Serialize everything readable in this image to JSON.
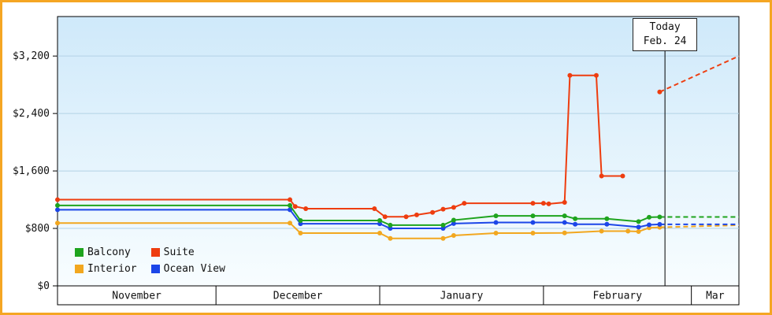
{
  "frame": {
    "border_color": "#f5a623"
  },
  "chart_data": {
    "type": "line",
    "points_unit": "days_from_nov_1",
    "y_axis": {
      "plot_max": 3750,
      "ticks": [
        {
          "value": 0,
          "label": "$0"
        },
        {
          "value": 800,
          "label": "$800"
        },
        {
          "value": 1600,
          "label": "$1,600"
        },
        {
          "value": 2400,
          "label": "$2,400"
        },
        {
          "value": 3200,
          "label": "$3,200"
        }
      ]
    },
    "x_axis": {
      "total_days": 129,
      "months": [
        {
          "label": "November",
          "days": 30
        },
        {
          "label": "December",
          "days": 31
        },
        {
          "label": "January",
          "days": 31
        },
        {
          "label": "February",
          "days": 28
        },
        {
          "label": "Mar",
          "days": 9
        }
      ]
    },
    "today": {
      "day": 115,
      "label_top": "Today",
      "label_date": "Feb. 24"
    },
    "series": [
      {
        "name": "Balcony",
        "color": "#1ea41e",
        "segments": [
          [
            [
              0,
              1120
            ],
            [
              44,
              1120
            ],
            [
              46,
              910
            ],
            [
              61,
              910
            ],
            [
              63,
              845
            ],
            [
              73,
              845
            ],
            [
              75,
              915
            ],
            [
              83,
              975
            ],
            [
              90,
              975
            ],
            [
              96,
              975
            ],
            [
              98,
              935
            ],
            [
              104,
              935
            ],
            [
              110,
              895
            ],
            [
              112,
              955
            ],
            [
              114,
              960
            ]
          ]
        ],
        "dashed": [
          [
            114,
            960
          ],
          [
            129,
            960
          ]
        ]
      },
      {
        "name": "Suite",
        "color": "#ee3d0f",
        "segments": [
          [
            [
              0,
              1200
            ],
            [
              44,
              1200
            ],
            [
              45,
              1105
            ],
            [
              47,
              1075
            ],
            [
              60,
              1075
            ],
            [
              62,
              962
            ],
            [
              66,
              962
            ],
            [
              68,
              988
            ],
            [
              71,
              1022
            ],
            [
              73,
              1068
            ],
            [
              75,
              1092
            ],
            [
              77,
              1150
            ],
            [
              90,
              1150
            ],
            [
              92,
              1150
            ],
            [
              93,
              1142
            ],
            [
              96,
              1162
            ],
            [
              97,
              2930
            ],
            [
              102,
              2930
            ],
            [
              103,
              1530
            ],
            [
              107,
              1530
            ]
          ],
          [
            [
              114,
              2700
            ]
          ]
        ],
        "dashed": [
          [
            114,
            2700
          ],
          [
            129,
            3200
          ]
        ]
      },
      {
        "name": "Interior",
        "color": "#f2a71f",
        "segments": [
          [
            [
              0,
              875
            ],
            [
              44,
              875
            ],
            [
              46,
              735
            ],
            [
              61,
              735
            ],
            [
              63,
              660
            ],
            [
              73,
              660
            ],
            [
              75,
              702
            ],
            [
              83,
              735
            ],
            [
              90,
              735
            ],
            [
              96,
              738
            ],
            [
              103,
              762
            ],
            [
              108,
              762
            ],
            [
              110,
              756
            ],
            [
              112,
              808
            ],
            [
              114,
              815
            ]
          ]
        ],
        "dashed": [
          [
            114,
            815
          ],
          [
            129,
            845
          ]
        ]
      },
      {
        "name": "Ocean View",
        "color": "#1c46e8",
        "segments": [
          [
            [
              0,
              1060
            ],
            [
              44,
              1060
            ],
            [
              46,
              865
            ],
            [
              61,
              865
            ],
            [
              63,
              800
            ],
            [
              73,
              800
            ],
            [
              75,
              868
            ],
            [
              83,
              882
            ],
            [
              90,
              882
            ],
            [
              96,
              882
            ],
            [
              98,
              858
            ],
            [
              104,
              858
            ],
            [
              110,
              818
            ],
            [
              112,
              850
            ],
            [
              114,
              856
            ]
          ]
        ],
        "dashed": [
          [
            114,
            856
          ],
          [
            129,
            856
          ]
        ]
      }
    ],
    "legend": {
      "items": [
        "Balcony",
        "Suite",
        "Interior",
        "Ocean View"
      ]
    }
  }
}
